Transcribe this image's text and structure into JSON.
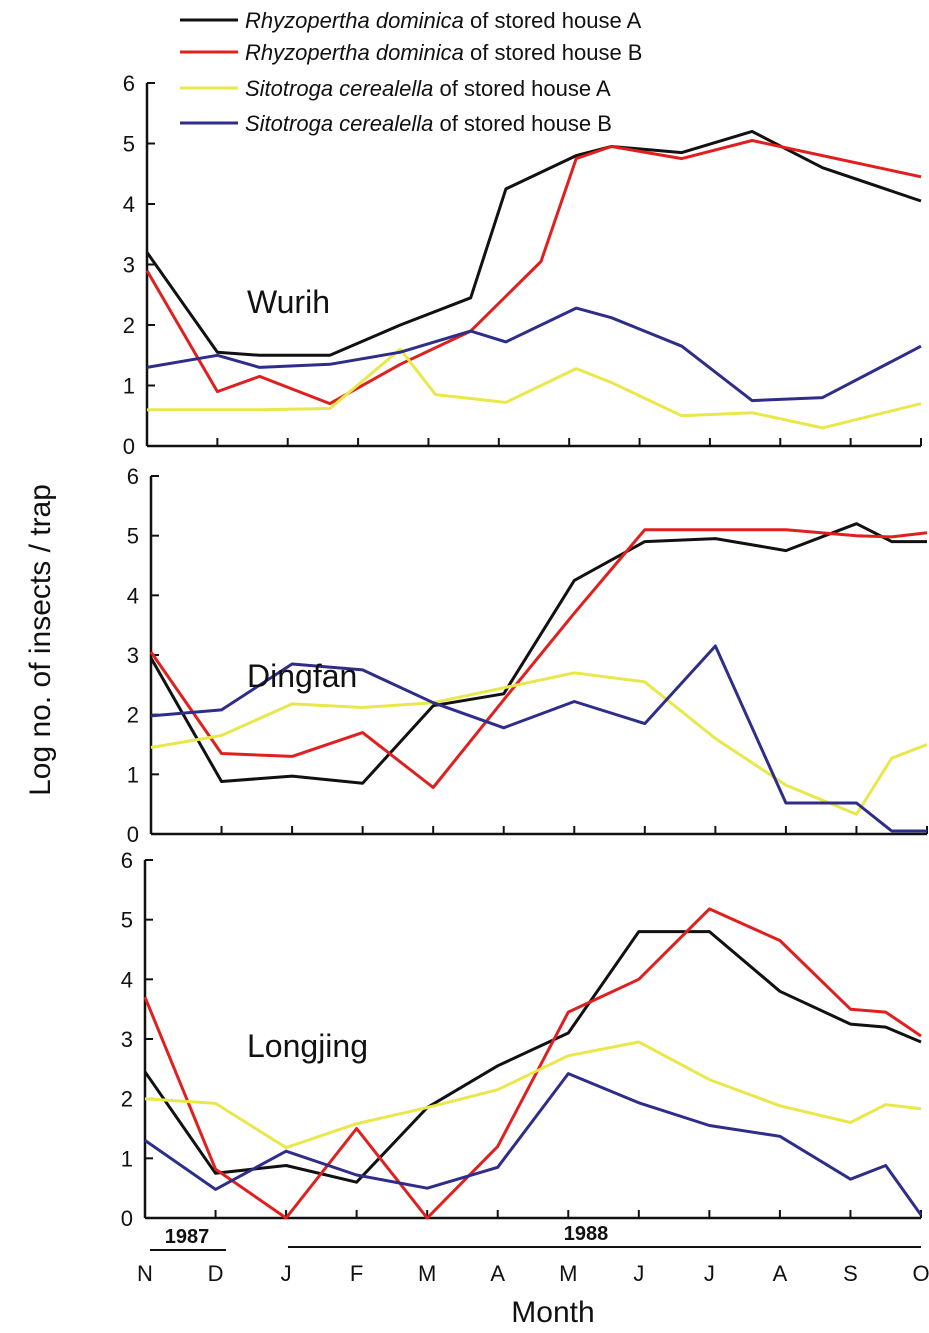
{
  "chart_data": {
    "type": "line",
    "ylabel": "Log no. of insects / trap",
    "xlabel": "Month",
    "ylim": [
      0,
      6
    ],
    "yticks": [
      "0",
      "1",
      "2",
      "3",
      "4",
      "5",
      "6"
    ],
    "categories": [
      "N",
      "D",
      "J",
      "F",
      "M",
      "A",
      "M",
      "J",
      "J",
      "A",
      "S",
      "O"
    ],
    "year_labels": [
      "1987",
      "1988"
    ],
    "legend": [
      {
        "italic": "Rhyzopertha dominica",
        "rest": " of stored house A",
        "color": "#111111"
      },
      {
        "italic": "Rhyzopertha dominica",
        "rest": " of stored house B",
        "color": "#e0201e"
      },
      {
        "italic": "Sitotroga cerealella",
        "rest": " of stored house A",
        "color": "#e8e84a"
      },
      {
        "italic": "Sitotroga cerealella",
        "rest": " of stored house B",
        "color": "#2e2e8a"
      }
    ],
    "panels": [
      {
        "title": "Wurih",
        "series": [
          {
            "name": "Rhyzopertha dominica of stored house A",
            "color": "#111111",
            "points": [
              [
                0,
                3.2
              ],
              [
                1,
                1.55
              ],
              [
                1.6,
                1.5
              ],
              [
                2.6,
                1.5
              ],
              [
                3.6,
                2.0
              ],
              [
                4.6,
                2.45
              ],
              [
                5.1,
                4.25
              ],
              [
                6.1,
                4.8
              ],
              [
                6.6,
                4.95
              ],
              [
                7.6,
                4.85
              ],
              [
                8.6,
                5.2
              ],
              [
                9.6,
                4.6
              ],
              [
                11.0,
                4.05
              ]
            ]
          },
          {
            "name": "Rhyzopertha dominica of stored house B",
            "color": "#e0201e",
            "points": [
              [
                0,
                2.9
              ],
              [
                1,
                0.9
              ],
              [
                1.6,
                1.15
              ],
              [
                2.6,
                0.7
              ],
              [
                3.6,
                1.35
              ],
              [
                4.6,
                1.9
              ],
              [
                5.6,
                3.05
              ],
              [
                6.1,
                4.75
              ],
              [
                6.6,
                4.95
              ],
              [
                7.6,
                4.75
              ],
              [
                8.6,
                5.05
              ],
              [
                9.6,
                4.8
              ],
              [
                11.0,
                4.45
              ]
            ]
          },
          {
            "name": "Sitotroga cerealella of stored house A",
            "color": "#e8e84a",
            "points": [
              [
                0,
                0.6
              ],
              [
                1,
                0.6
              ],
              [
                1.6,
                0.6
              ],
              [
                2.6,
                0.62
              ],
              [
                3.6,
                1.6
              ],
              [
                4.1,
                0.85
              ],
              [
                5.1,
                0.72
              ],
              [
                6.1,
                1.28
              ],
              [
                6.6,
                1.05
              ],
              [
                7.6,
                0.5
              ],
              [
                8.6,
                0.55
              ],
              [
                9.6,
                0.3
              ],
              [
                11.0,
                0.7
              ]
            ]
          },
          {
            "name": "Sitotroga cerealella of stored house B",
            "color": "#2e2e8a",
            "points": [
              [
                0,
                1.3
              ],
              [
                1,
                1.5
              ],
              [
                1.6,
                1.3
              ],
              [
                2.6,
                1.35
              ],
              [
                3.6,
                1.55
              ],
              [
                4.6,
                1.9
              ],
              [
                5.1,
                1.72
              ],
              [
                6.1,
                2.28
              ],
              [
                6.6,
                2.12
              ],
              [
                7.6,
                1.65
              ],
              [
                8.6,
                0.75
              ],
              [
                9.6,
                0.8
              ],
              [
                11.0,
                1.65
              ]
            ]
          }
        ]
      },
      {
        "title": "Dingfan",
        "series": [
          {
            "name": "Rhyzopertha dominica of stored house A",
            "color": "#111111",
            "points": [
              [
                0,
                2.95
              ],
              [
                1,
                0.88
              ],
              [
                2,
                0.97
              ],
              [
                3,
                0.85
              ],
              [
                4,
                2.15
              ],
              [
                5,
                2.35
              ],
              [
                6,
                4.25
              ],
              [
                7,
                4.9
              ],
              [
                8,
                4.95
              ],
              [
                9,
                4.75
              ],
              [
                10,
                5.2
              ],
              [
                10.5,
                4.9
              ],
              [
                11.0,
                4.9
              ]
            ]
          },
          {
            "name": "Rhyzopertha dominica of stored house B",
            "color": "#e0201e",
            "points": [
              [
                0,
                3.05
              ],
              [
                1,
                1.35
              ],
              [
                2,
                1.3
              ],
              [
                3,
                1.7
              ],
              [
                4,
                0.78
              ],
              [
                5,
                2.25
              ],
              [
                6,
                3.7
              ],
              [
                7,
                5.1
              ],
              [
                8,
                5.1
              ],
              [
                9,
                5.1
              ],
              [
                10,
                5.0
              ],
              [
                10.5,
                4.98
              ],
              [
                11.0,
                5.05
              ]
            ]
          },
          {
            "name": "Sitotroga cerealella of stored house A",
            "color": "#e8e84a",
            "points": [
              [
                0,
                1.45
              ],
              [
                1,
                1.65
              ],
              [
                2,
                2.18
              ],
              [
                3,
                2.12
              ],
              [
                4,
                2.2
              ],
              [
                5,
                2.45
              ],
              [
                6,
                2.7
              ],
              [
                7,
                2.55
              ],
              [
                8,
                1.6
              ],
              [
                9,
                0.82
              ],
              [
                10,
                0.33
              ],
              [
                10.5,
                1.27
              ],
              [
                11.0,
                1.5
              ]
            ]
          },
          {
            "name": "Sitotroga cerealella of stored house B",
            "color": "#2e2e8a",
            "points": [
              [
                0,
                1.98
              ],
              [
                1,
                2.08
              ],
              [
                2,
                2.85
              ],
              [
                3,
                2.75
              ],
              [
                4,
                2.2
              ],
              [
                5,
                1.78
              ],
              [
                6,
                2.22
              ],
              [
                7,
                1.85
              ],
              [
                8,
                3.15
              ],
              [
                9,
                0.52
              ],
              [
                10,
                0.52
              ],
              [
                10.5,
                0.05
              ],
              [
                11.0,
                0.05
              ]
            ]
          }
        ]
      },
      {
        "title": "Longjing",
        "series": [
          {
            "name": "Rhyzopertha dominica of stored house A",
            "color": "#111111",
            "points": [
              [
                0,
                2.45
              ],
              [
                1,
                0.75
              ],
              [
                2,
                0.88
              ],
              [
                3,
                0.6
              ],
              [
                4,
                1.85
              ],
              [
                5,
                2.55
              ],
              [
                6,
                3.1
              ],
              [
                7,
                4.8
              ],
              [
                8,
                4.8
              ],
              [
                9,
                3.8
              ],
              [
                10,
                3.25
              ],
              [
                10.5,
                3.2
              ],
              [
                11.0,
                2.95
              ]
            ]
          },
          {
            "name": "Rhyzopertha dominica of stored house B",
            "color": "#e0201e",
            "points": [
              [
                0,
                3.7
              ],
              [
                1,
                0.82
              ],
              [
                2,
                0.0
              ],
              [
                3,
                1.5
              ],
              [
                4,
                0.0
              ],
              [
                5,
                1.2
              ],
              [
                6,
                3.45
              ],
              [
                7,
                4.0
              ],
              [
                8,
                5.18
              ],
              [
                9,
                4.65
              ],
              [
                10,
                3.5
              ],
              [
                10.5,
                3.45
              ],
              [
                11.0,
                3.05
              ]
            ]
          },
          {
            "name": "Sitotroga cerealella of stored house A",
            "color": "#e8e84a",
            "points": [
              [
                0,
                2.0
              ],
              [
                1,
                1.92
              ],
              [
                2,
                1.18
              ],
              [
                3,
                1.58
              ],
              [
                4,
                1.85
              ],
              [
                5,
                2.15
              ],
              [
                6,
                2.72
              ],
              [
                7,
                2.95
              ],
              [
                8,
                2.32
              ],
              [
                9,
                1.88
              ],
              [
                10,
                1.6
              ],
              [
                10.5,
                1.9
              ],
              [
                11.0,
                1.83
              ]
            ]
          },
          {
            "name": "Sitotroga cerealella of stored house B",
            "color": "#2e2e8a",
            "points": [
              [
                0,
                1.3
              ],
              [
                1,
                0.48
              ],
              [
                2,
                1.12
              ],
              [
                3,
                0.72
              ],
              [
                4,
                0.5
              ],
              [
                5,
                0.85
              ],
              [
                6,
                2.42
              ],
              [
                7,
                1.93
              ],
              [
                8,
                1.55
              ],
              [
                9,
                1.37
              ],
              [
                10,
                0.65
              ],
              [
                10.5,
                0.88
              ],
              [
                11.0,
                0.05
              ]
            ]
          }
        ]
      }
    ]
  }
}
